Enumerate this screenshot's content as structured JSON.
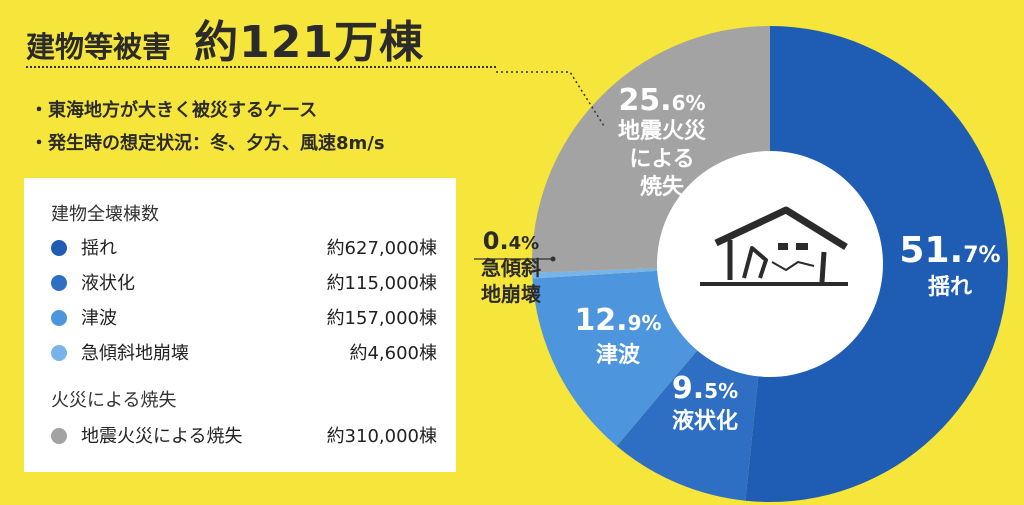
{
  "header": {
    "category": "建物等被害",
    "total": "約121万棟"
  },
  "bullets": [
    "・東海地方が大きく被災するケース",
    "・発生時の想定状況：冬、夕方、風速8m/s"
  ],
  "legend": {
    "collapse_heading": "建物全壊棟数",
    "collapse_items": [
      {
        "label": "揺れ",
        "value": "約627,000棟",
        "color": "#1f5cb3"
      },
      {
        "label": "液状化",
        "value": "約115,000棟",
        "color": "#2e6fc4"
      },
      {
        "label": "津波",
        "value": "約157,000棟",
        "color": "#4d95dd"
      },
      {
        "label": "急傾斜地崩壊",
        "value": "約4,600棟",
        "color": "#78b4ea"
      }
    ],
    "fire_heading": "火災による焼失",
    "fire_items": [
      {
        "label": "地震火災による焼失",
        "value": "約310,000棟",
        "color": "#a3a3a3"
      }
    ]
  },
  "chart_data": {
    "type": "pie",
    "donut": true,
    "center_icon": "collapsed-house-icon",
    "slices": [
      {
        "pct_big": "51.",
        "pct_small": "7%",
        "value": 51.7,
        "label_lines": [
          "揺れ"
        ],
        "color": "#1f5cb3"
      },
      {
        "pct_big": "9.",
        "pct_small": "5%",
        "value": 9.5,
        "label_lines": [
          "液状化"
        ],
        "color": "#2e6fc4"
      },
      {
        "pct_big": "12.",
        "pct_small": "9%",
        "value": 12.9,
        "label_lines": [
          "津波"
        ],
        "color": "#4d95dd"
      },
      {
        "pct_big": "0.",
        "pct_small": "4%",
        "value": 0.4,
        "label_lines": [
          "急傾斜",
          "地崩壊"
        ],
        "color": "#78b4ea"
      },
      {
        "pct_big": "25.",
        "pct_small": "6%",
        "value": 25.6,
        "label_lines": [
          "地震火災",
          "による",
          "焼失"
        ],
        "color": "#a3a3a3"
      }
    ]
  }
}
